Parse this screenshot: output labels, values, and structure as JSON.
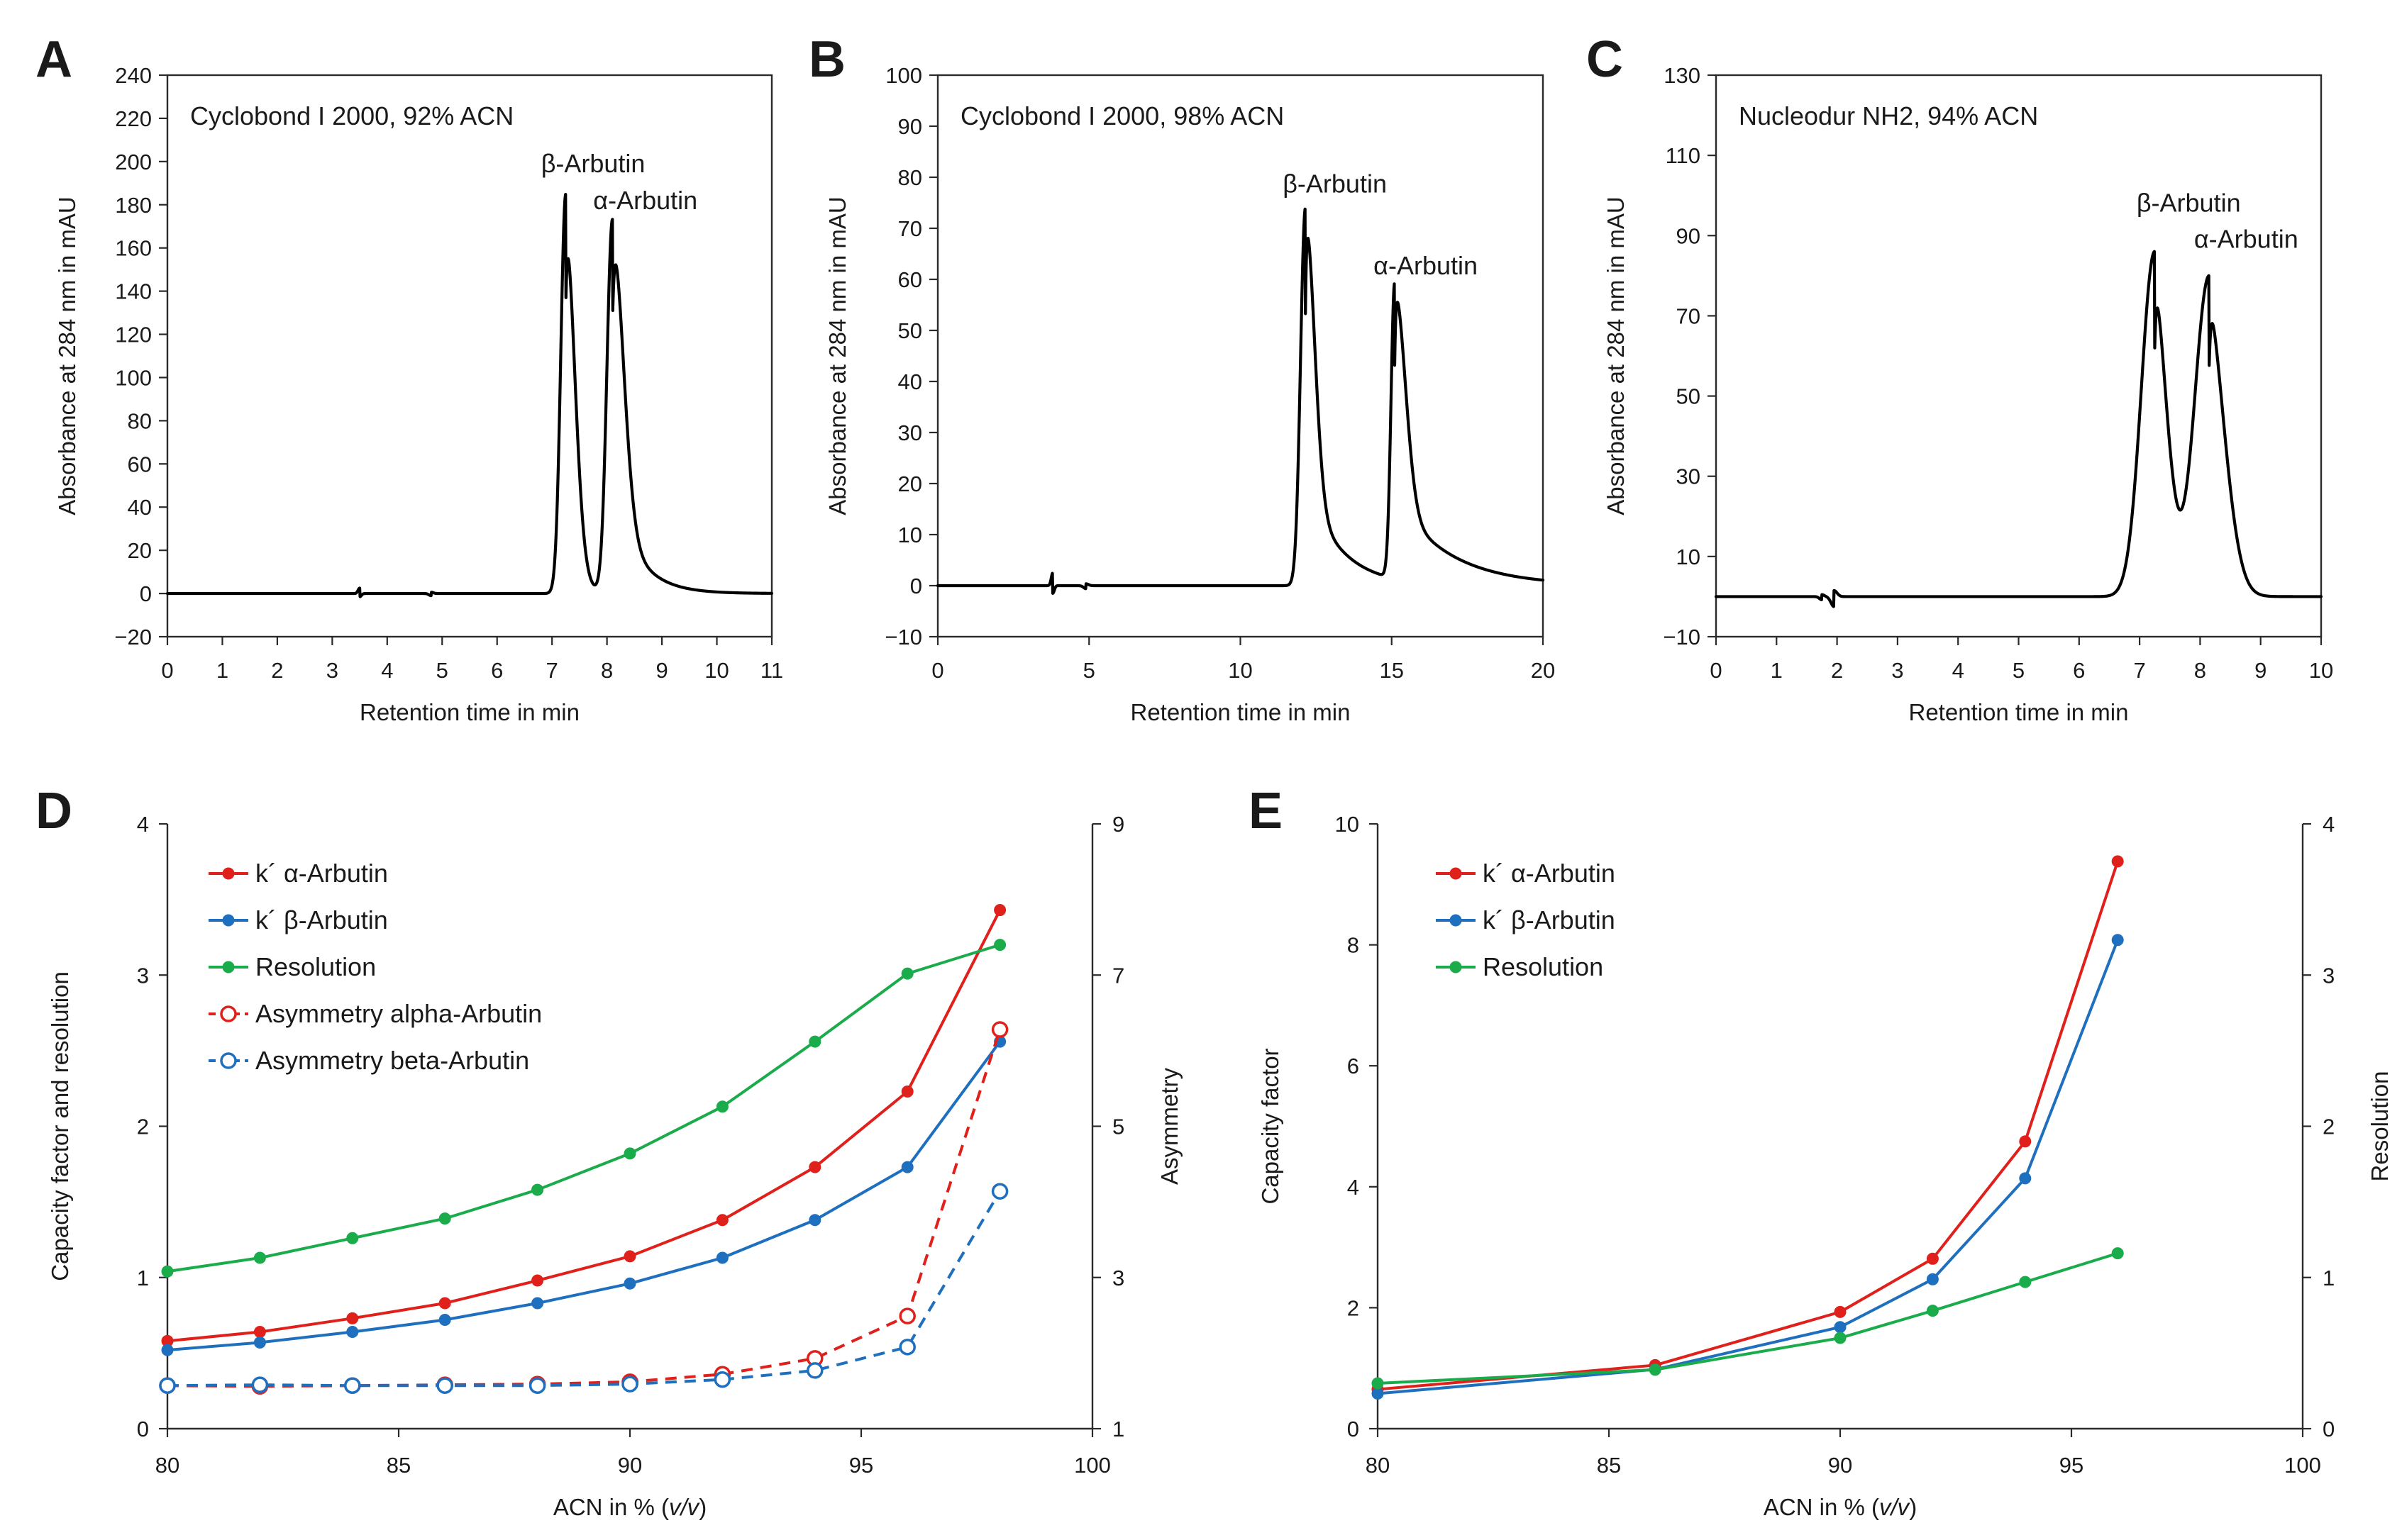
{
  "figure": {
    "panels": [
      "A",
      "B",
      "C",
      "D",
      "E"
    ]
  },
  "chart_data": [
    {
      "id": "A",
      "type": "line",
      "subtitle": "Cyclobond I 2000, 92% ACN",
      "xlabel": "Retention time in min",
      "ylabel": "Absorbance at 284 nm in mAU",
      "xlim": [
        0,
        11
      ],
      "ylim": [
        -20,
        240
      ],
      "xticks": [
        0,
        1,
        2,
        3,
        4,
        5,
        6,
        7,
        8,
        9,
        10,
        11
      ],
      "yticks": [
        -20,
        0,
        20,
        40,
        60,
        80,
        100,
        120,
        140,
        160,
        180,
        200,
        220,
        240
      ],
      "peaks": [
        {
          "name": "β-Arbutin",
          "rt": 7.25,
          "height": 185,
          "w1": 0.09,
          "w2": 0.17,
          "tail": 0.16
        },
        {
          "name": "α-Arbutin",
          "rt": 8.1,
          "height": 173,
          "w1": 0.1,
          "w2": 0.2,
          "tail": 0.45
        }
      ],
      "artifacts": [
        {
          "t": 3.5,
          "amp": 2.5,
          "w": 0.03
        },
        {
          "t": 4.8,
          "amp": -1.0,
          "w": 0.04
        }
      ],
      "annotations": [
        {
          "text": "β-Arbutin",
          "x": 6.8,
          "y": 195
        },
        {
          "text": "α-Arbutin",
          "x": 7.75,
          "y": 178
        }
      ]
    },
    {
      "id": "B",
      "type": "line",
      "subtitle": "Cyclobond I 2000, 98% ACN",
      "xlabel": "Retention time in min",
      "ylabel": "Absorbance at 284 nm in mAU",
      "xlim": [
        0,
        20
      ],
      "ylim": [
        -10,
        100
      ],
      "xticks": [
        0,
        5,
        10,
        15,
        20
      ],
      "yticks": [
        -10,
        0,
        10,
        20,
        30,
        40,
        50,
        60,
        70,
        80,
        90,
        100
      ],
      "peaks": [
        {
          "name": "β-Arbutin",
          "rt": 12.15,
          "height": 74,
          "w1": 0.16,
          "w2": 0.3,
          "tail": 1.1
        },
        {
          "name": "α-Arbutin",
          "rt": 15.1,
          "height": 58,
          "w1": 0.12,
          "w2": 0.35,
          "tail": 1.8
        }
      ],
      "artifacts": [
        {
          "t": 3.8,
          "amp": 2.5,
          "w": 0.05
        },
        {
          "t": 4.9,
          "amp": -0.6,
          "w": 0.08
        }
      ],
      "annotations": [
        {
          "text": "β-Arbutin",
          "x": 11.4,
          "y": 77
        },
        {
          "text": "α-Arbutin",
          "x": 14.4,
          "y": 61
        }
      ]
    },
    {
      "id": "C",
      "type": "line",
      "subtitle": "Nucleodur NH2, 94% ACN",
      "xlabel": "Retention time in min",
      "ylabel": "Absorbance at 284 nm in mAU",
      "xlim": [
        0,
        10
      ],
      "ylim": [
        -10,
        130
      ],
      "xticks": [
        0,
        1,
        2,
        3,
        4,
        5,
        6,
        7,
        8,
        9,
        10
      ],
      "yticks": [
        -10,
        10,
        30,
        50,
        70,
        90,
        110,
        130
      ],
      "peaks": [
        {
          "name": "β-Arbutin",
          "rt": 7.25,
          "height": 86,
          "w1": 0.22,
          "w2": 0.22,
          "tail": 0.12
        },
        {
          "name": "α-Arbutin",
          "rt": 8.15,
          "height": 80,
          "w1": 0.24,
          "w2": 0.27,
          "tail": 0.15
        }
      ],
      "artifacts": [
        {
          "t": 1.95,
          "amp": -2.5,
          "w": 0.05
        },
        {
          "t": 1.75,
          "amp": -0.8,
          "w": 0.04
        }
      ],
      "annotations": [
        {
          "text": "β-Arbutin",
          "x": 6.95,
          "y": 96
        },
        {
          "text": "α-Arbutin",
          "x": 7.9,
          "y": 87
        }
      ]
    },
    {
      "id": "D",
      "type": "line",
      "xlabel": "ACN in % (v/v)",
      "ylabel": "Capacity factor and resolution",
      "y2label": "Asymmetry",
      "xlim": [
        80,
        100
      ],
      "ylim": [
        0,
        4
      ],
      "y2lim": [
        1,
        9
      ],
      "xticks": [
        80,
        85,
        90,
        95,
        100
      ],
      "yticks": [
        0,
        1,
        2,
        3,
        4
      ],
      "y2ticks": [
        1,
        3,
        5,
        7,
        9
      ],
      "legend_position": "top-left",
      "series": [
        {
          "name": "k´ α-Arbutin",
          "color": "#e0201b",
          "axis": "left",
          "style": "solid-filled",
          "x": [
            80,
            82,
            84,
            86,
            88,
            90,
            92,
            94,
            96,
            98
          ],
          "values": [
            0.58,
            0.64,
            0.73,
            0.83,
            0.98,
            1.14,
            1.38,
            1.73,
            2.23,
            3.43
          ]
        },
        {
          "name": "k´ β-Arbutin",
          "color": "#1f6fbf",
          "axis": "left",
          "style": "solid-filled",
          "x": [
            80,
            82,
            84,
            86,
            88,
            90,
            92,
            94,
            96,
            98
          ],
          "values": [
            0.52,
            0.57,
            0.64,
            0.72,
            0.83,
            0.96,
            1.13,
            1.38,
            1.73,
            2.56
          ]
        },
        {
          "name": "Resolution",
          "color": "#1aab4b",
          "axis": "left",
          "style": "solid-filled",
          "x": [
            80,
            82,
            84,
            86,
            88,
            90,
            92,
            94,
            96,
            98
          ],
          "values": [
            1.04,
            1.13,
            1.26,
            1.39,
            1.58,
            1.82,
            2.13,
            2.56,
            3.01,
            3.2
          ]
        },
        {
          "name": "Asymmetry alpha-Arbutin",
          "color": "#e0201b",
          "axis": "right",
          "style": "dashed-open",
          "x": [
            80,
            82,
            84,
            86,
            88,
            90,
            92,
            94,
            96,
            98
          ],
          "values": [
            1.57,
            1.56,
            1.57,
            1.58,
            1.59,
            1.62,
            1.72,
            1.93,
            2.49,
            6.28
          ]
        },
        {
          "name": "Asymmetry beta-Arbutin",
          "color": "#1f6fbf",
          "axis": "right",
          "style": "dashed-open",
          "x": [
            80,
            82,
            84,
            86,
            88,
            90,
            92,
            94,
            96,
            98
          ],
          "values": [
            1.57,
            1.58,
            1.57,
            1.57,
            1.57,
            1.59,
            1.65,
            1.77,
            2.08,
            4.14
          ]
        }
      ]
    },
    {
      "id": "E",
      "type": "line",
      "xlabel": "ACN in % (v/v)",
      "ylabel": "Capacity factor",
      "y2label": "Resolution",
      "xlim": [
        80,
        100
      ],
      "ylim": [
        0,
        10
      ],
      "y2lim": [
        0,
        4
      ],
      "xticks": [
        80,
        85,
        90,
        95,
        100
      ],
      "yticks": [
        0,
        2,
        4,
        6,
        8,
        10
      ],
      "y2ticks": [
        0,
        1,
        2,
        3,
        4
      ],
      "legend_position": "top-left",
      "series": [
        {
          "name": "k´ α-Arbutin",
          "color": "#e0201b",
          "axis": "left",
          "style": "solid-filled",
          "x": [
            80,
            86,
            90,
            92,
            94,
            96
          ],
          "values": [
            0.65,
            1.05,
            1.93,
            2.81,
            4.75,
            9.38
          ]
        },
        {
          "name": "k´ β-Arbutin",
          "color": "#1f6fbf",
          "axis": "left",
          "style": "solid-filled",
          "x": [
            80,
            86,
            90,
            92,
            94,
            96
          ],
          "values": [
            0.58,
            0.98,
            1.68,
            2.47,
            4.14,
            8.08
          ]
        },
        {
          "name": "Resolution",
          "color": "#1aab4b",
          "axis": "right",
          "style": "solid-filled",
          "x": [
            80,
            86,
            90,
            92,
            94,
            96
          ],
          "values": [
            0.3,
            0.39,
            0.6,
            0.78,
            0.97,
            1.16
          ]
        }
      ]
    }
  ]
}
